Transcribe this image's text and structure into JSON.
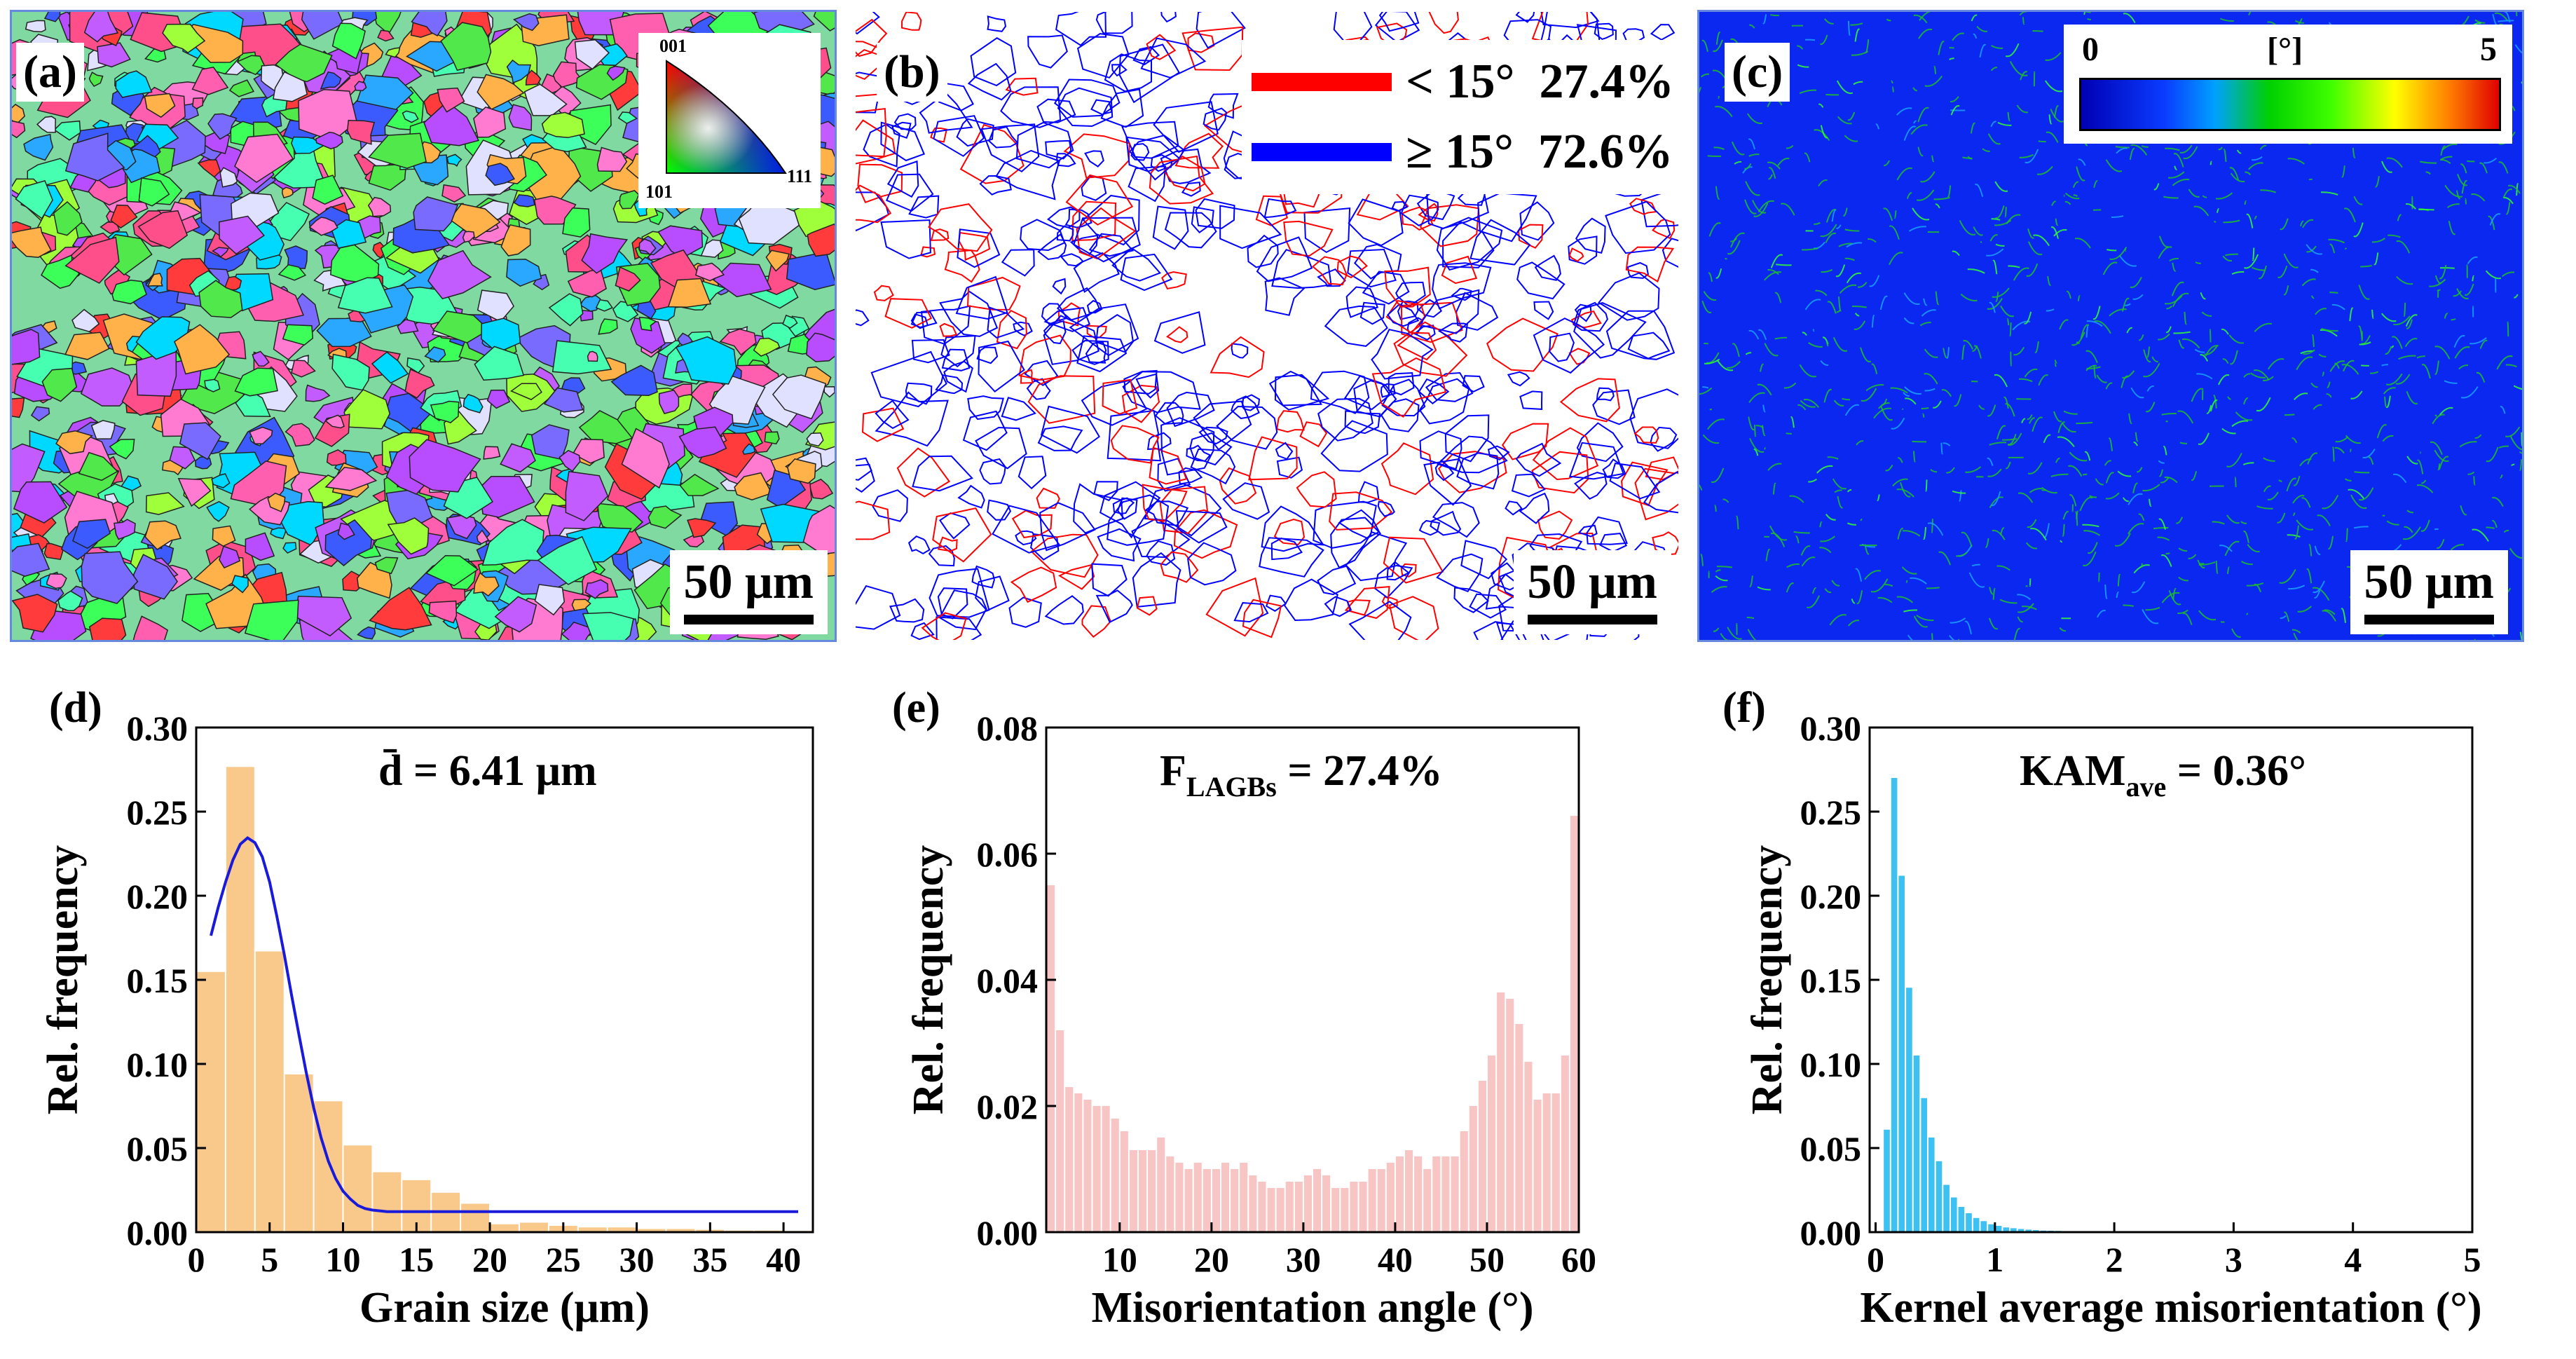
{
  "panels_top": {
    "a": {
      "label": "(a)",
      "scale_bar": "50 μm",
      "ipf_legend": {
        "top": "001",
        "left": "101",
        "right": "111"
      }
    },
    "b": {
      "label": "(b)",
      "scale_bar": "50 μm",
      "legend": [
        {
          "text": "< 15°  27.4%",
          "color": "#ff0000"
        },
        {
          "text": "≥ 15°  72.6%",
          "color": "#0000ff"
        }
      ]
    },
    "c": {
      "label": "(c)",
      "scale_bar": "50 μm",
      "colorbar": {
        "min": "0",
        "unit": "[°]",
        "max": "5"
      }
    }
  },
  "chart_data": [
    {
      "panel": "(d)",
      "type": "bar",
      "annotation": "d̄ = 6.41 μm",
      "xlabel": "Grain size (μm)",
      "ylabel": "Rel. frequency",
      "xlim": [
        0,
        42
      ],
      "ylim": [
        0,
        0.32
      ],
      "xticks": [
        "0",
        "5",
        "10",
        "15",
        "20",
        "25",
        "30",
        "35",
        "40"
      ],
      "yticks": [
        "0.00",
        "0.05",
        "0.10",
        "0.15",
        "0.20",
        "0.25",
        "0.30"
      ],
      "bar_color": "#f9c98c",
      "bin_width": 2,
      "bins_start": [
        0,
        2,
        4,
        6,
        8,
        10,
        12,
        14,
        16,
        18,
        20,
        22,
        24,
        26,
        28,
        30,
        32,
        34,
        36,
        38,
        40
      ],
      "values": [
        0.165,
        0.295,
        0.178,
        0.1,
        0.083,
        0.055,
        0.038,
        0.033,
        0.025,
        0.018,
        0.005,
        0.006,
        0.004,
        0.003,
        0.003,
        0.002,
        0.002,
        0.0015,
        0.001,
        0.001,
        0.0008
      ],
      "fit_curve": {
        "color": "#1a1adb",
        "x": [
          1,
          1.5,
          2,
          2.5,
          3,
          3.5,
          4,
          4.5,
          5,
          5.5,
          6,
          6.5,
          7,
          7.5,
          8,
          8.5,
          9,
          9.5,
          10,
          10.5,
          11,
          11.5,
          12,
          13,
          14,
          16,
          20,
          30,
          41
        ],
        "y": [
          0.188,
          0.206,
          0.222,
          0.236,
          0.246,
          0.25,
          0.247,
          0.238,
          0.222,
          0.2,
          0.176,
          0.15,
          0.125,
          0.101,
          0.079,
          0.06,
          0.045,
          0.034,
          0.026,
          0.021,
          0.017,
          0.015,
          0.014,
          0.013,
          0.013,
          0.013,
          0.013,
          0.013,
          0.013
        ]
      }
    },
    {
      "panel": "(e)",
      "type": "bar",
      "annotation": "F",
      "annotation_sub": "LAGBs",
      "annotation_rest": " = 27.4%",
      "xlabel": "Misorientation angle (°)",
      "ylabel": "Rel. frequency",
      "xlim": [
        2,
        60
      ],
      "ylim": [
        0,
        0.08
      ],
      "xticks": [
        "10",
        "20",
        "30",
        "40",
        "50",
        "60"
      ],
      "xtick_values": [
        10,
        20,
        30,
        40,
        50,
        60
      ],
      "yticks": [
        "0.00",
        "0.02",
        "0.04",
        "0.06",
        "0.08"
      ],
      "bar_color": "#f8c5c5",
      "bin_width": 1,
      "bins_start": [
        2,
        3,
        4,
        5,
        6,
        7,
        8,
        9,
        10,
        11,
        12,
        13,
        14,
        15,
        16,
        17,
        18,
        19,
        20,
        21,
        22,
        23,
        24,
        25,
        26,
        27,
        28,
        29,
        30,
        31,
        32,
        33,
        34,
        35,
        36,
        37,
        38,
        39,
        40,
        41,
        42,
        43,
        44,
        45,
        46,
        47,
        48,
        49,
        50,
        51,
        52,
        53,
        54,
        55,
        56,
        57,
        58,
        59
      ],
      "values": [
        0.055,
        0.032,
        0.023,
        0.022,
        0.021,
        0.02,
        0.02,
        0.018,
        0.016,
        0.013,
        0.013,
        0.013,
        0.015,
        0.012,
        0.011,
        0.01,
        0.011,
        0.01,
        0.01,
        0.011,
        0.01,
        0.011,
        0.009,
        0.008,
        0.007,
        0.007,
        0.008,
        0.008,
        0.009,
        0.01,
        0.009,
        0.007,
        0.007,
        0.008,
        0.008,
        0.01,
        0.01,
        0.011,
        0.012,
        0.013,
        0.012,
        0.01,
        0.012,
        0.012,
        0.012,
        0.016,
        0.02,
        0.024,
        0.028,
        0.038,
        0.037,
        0.033,
        0.027,
        0.021,
        0.022,
        0.022,
        0.028,
        0.066
      ]
    },
    {
      "panel": "(f)",
      "type": "bar",
      "annotation": "KAM",
      "annotation_sub": "ave",
      "annotation_rest": " = 0.36°",
      "xlabel": "Kernel average misorientation (°)",
      "ylabel": "Rel. frequency",
      "xlim": [
        -0.05,
        5
      ],
      "ylim": [
        0,
        0.32
      ],
      "xticks": [
        "0",
        "1",
        "2",
        "3",
        "4",
        "5"
      ],
      "yticks": [
        "0.00",
        "0.05",
        "0.10",
        "0.15",
        "0.20",
        "0.25",
        "0.30"
      ],
      "bar_color": "#3dc0f2",
      "bin_width": 0.0625,
      "bins_start": [
        0.0625,
        0.125,
        0.1875,
        0.25,
        0.3125,
        0.375,
        0.4375,
        0.5,
        0.5625,
        0.625,
        0.6875,
        0.75,
        0.8125,
        0.875,
        0.9375,
        1.0,
        1.0625,
        1.125,
        1.1875,
        1.25,
        1.3125,
        1.375,
        1.4375,
        1.5,
        1.5625,
        1.625,
        1.6875,
        1.75,
        1.8125,
        1.875,
        1.9375,
        2.0
      ],
      "values": [
        0.065,
        0.288,
        0.226,
        0.155,
        0.112,
        0.085,
        0.06,
        0.045,
        0.03,
        0.022,
        0.016,
        0.012,
        0.009,
        0.007,
        0.005,
        0.004,
        0.003,
        0.0025,
        0.002,
        0.0016,
        0.0013,
        0.001,
        0.0009,
        0.0008,
        0.0006,
        0.0005,
        0.0004,
        0.0003,
        0.0003,
        0.0002,
        0.0002,
        0.0002
      ]
    }
  ]
}
